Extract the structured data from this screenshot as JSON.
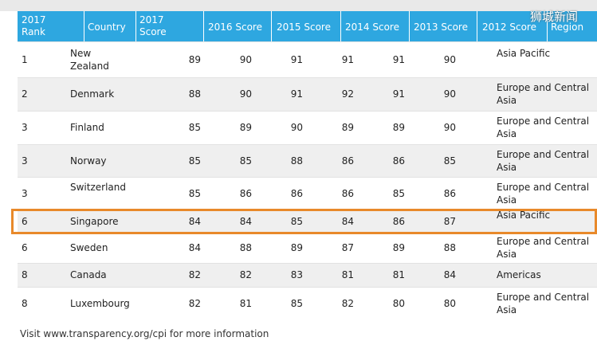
{
  "watermark": "狮城新闻",
  "table": {
    "header": [
      "2017 Rank",
      "Country",
      "2017 Score",
      "2016 Score",
      "2015 Score",
      "2014 Score",
      "2013 Score",
      "2012 Score",
      "Region"
    ],
    "rows": [
      [
        "1",
        "New Zealand",
        89,
        90,
        91,
        91,
        91,
        90,
        "Asia Pacific"
      ],
      [
        "2",
        "Denmark",
        88,
        90,
        91,
        92,
        91,
        90,
        "Europe and Central Asia"
      ],
      [
        "3",
        "Finland",
        85,
        89,
        90,
        89,
        89,
        90,
        "Europe and Central Asia"
      ],
      [
        "3",
        "Norway",
        85,
        85,
        88,
        86,
        86,
        85,
        "Europe and Central Asia"
      ],
      [
        "3",
        "Switzerland",
        85,
        86,
        86,
        86,
        85,
        86,
        "Europe and Central Asia"
      ],
      [
        "6",
        "Singapore",
        84,
        84,
        85,
        84,
        86,
        87,
        "Asia Pacific"
      ],
      [
        "6",
        "Sweden",
        84,
        88,
        89,
        87,
        89,
        88,
        "Europe and Central Asia"
      ],
      [
        "8",
        "Canada",
        82,
        82,
        83,
        81,
        81,
        84,
        "Americas"
      ],
      [
        "8",
        "Luxembourg",
        82,
        81,
        85,
        82,
        80,
        80,
        "Europe and Central Asia"
      ]
    ]
  },
  "footer": "Visit www.transparency.org/cpi for more information"
}
